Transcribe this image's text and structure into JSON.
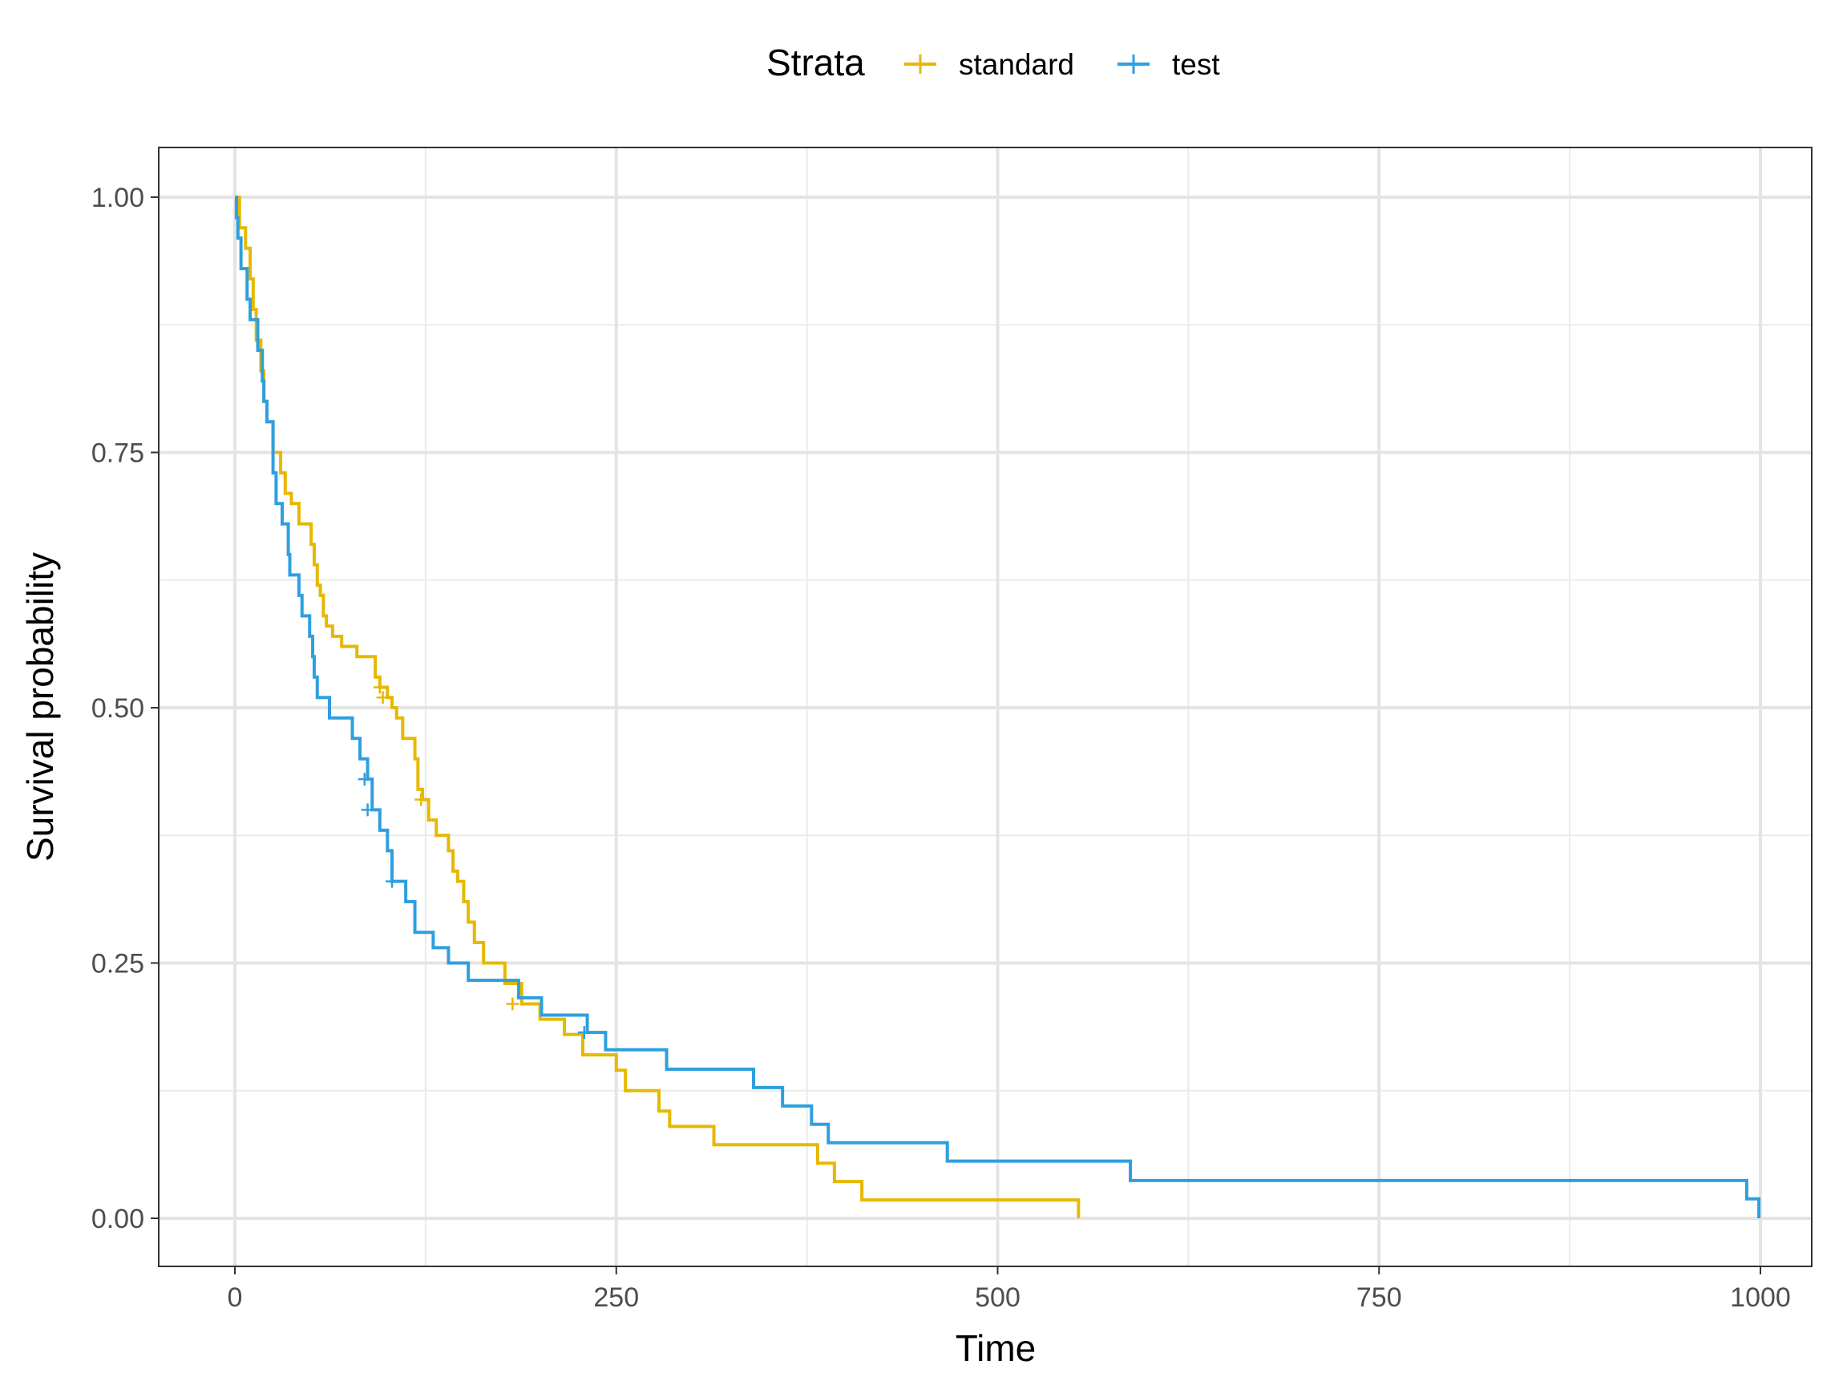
{
  "chart_data": {
    "type": "line",
    "step": true,
    "xlabel": "Time",
    "ylabel": "Survival probability",
    "xlim": [
      0,
      1000
    ],
    "ylim": [
      0,
      1
    ],
    "xticks": [
      0,
      250,
      500,
      750,
      1000
    ],
    "xtick_labels": [
      "0",
      "250",
      "500",
      "750",
      "1000"
    ],
    "yticks": [
      0,
      0.25,
      0.5,
      0.75,
      1
    ],
    "ytick_labels": [
      "0.00",
      "0.25",
      "0.50",
      "0.75",
      "1.00"
    ],
    "grid": true,
    "legend": {
      "title": "Strata",
      "position": "top"
    },
    "series": [
      {
        "name": "standard",
        "color": "#E7B800",
        "x": [
          0,
          3,
          7,
          10,
          12,
          14,
          17,
          19,
          21,
          25,
          30,
          33,
          37,
          42,
          50,
          52,
          54,
          56,
          58,
          60,
          64,
          70,
          80,
          92,
          95,
          100,
          103,
          106,
          110,
          118,
          120,
          123,
          127,
          132,
          140,
          143,
          146,
          150,
          153,
          157,
          163,
          177,
          188,
          200,
          216,
          228,
          250,
          256,
          278,
          285,
          314,
          382,
          393,
          411,
          553
        ],
        "y": [
          1.0,
          0.97,
          0.95,
          0.92,
          0.89,
          0.86,
          0.83,
          0.8,
          0.78,
          0.75,
          0.73,
          0.71,
          0.7,
          0.68,
          0.66,
          0.64,
          0.62,
          0.61,
          0.59,
          0.58,
          0.57,
          0.56,
          0.55,
          0.53,
          0.52,
          0.51,
          0.5,
          0.49,
          0.47,
          0.45,
          0.42,
          0.41,
          0.39,
          0.375,
          0.36,
          0.34,
          0.33,
          0.31,
          0.29,
          0.27,
          0.25,
          0.23,
          0.21,
          0.195,
          0.18,
          0.16,
          0.145,
          0.125,
          0.105,
          0.09,
          0.072,
          0.054,
          0.036,
          0.018,
          0.0
        ],
        "censored": [
          {
            "x": 95,
            "y": 0.52
          },
          {
            "x": 97,
            "y": 0.51
          },
          {
            "x": 122,
            "y": 0.41
          },
          {
            "x": 182,
            "y": 0.21
          }
        ]
      },
      {
        "name": "test",
        "color": "#2E9FDF",
        "x": [
          0,
          1,
          2,
          4,
          8,
          10,
          15,
          18,
          19,
          21,
          25,
          27,
          31,
          35,
          36,
          42,
          44,
          49,
          51,
          52,
          54,
          62,
          77,
          82,
          87,
          90,
          95,
          100,
          103,
          112,
          118,
          130,
          140,
          153,
          164,
          186,
          201,
          231,
          243,
          283,
          340,
          359,
          378,
          389,
          467,
          587,
          991,
          999
        ],
        "y": [
          1.0,
          0.98,
          0.96,
          0.93,
          0.9,
          0.88,
          0.85,
          0.82,
          0.8,
          0.78,
          0.73,
          0.7,
          0.68,
          0.65,
          0.63,
          0.61,
          0.59,
          0.57,
          0.55,
          0.53,
          0.51,
          0.49,
          0.47,
          0.45,
          0.43,
          0.4,
          0.38,
          0.36,
          0.33,
          0.31,
          0.28,
          0.265,
          0.25,
          0.233,
          0.233,
          0.216,
          0.199,
          0.182,
          0.165,
          0.146,
          0.128,
          0.11,
          0.092,
          0.074,
          0.056,
          0.037,
          0.019,
          0.0
        ],
        "censored": [
          {
            "x": 85,
            "y": 0.43
          },
          {
            "x": 87,
            "y": 0.4
          },
          {
            "x": 103,
            "y": 0.33
          },
          {
            "x": 229,
            "y": 0.182
          }
        ]
      }
    ]
  }
}
